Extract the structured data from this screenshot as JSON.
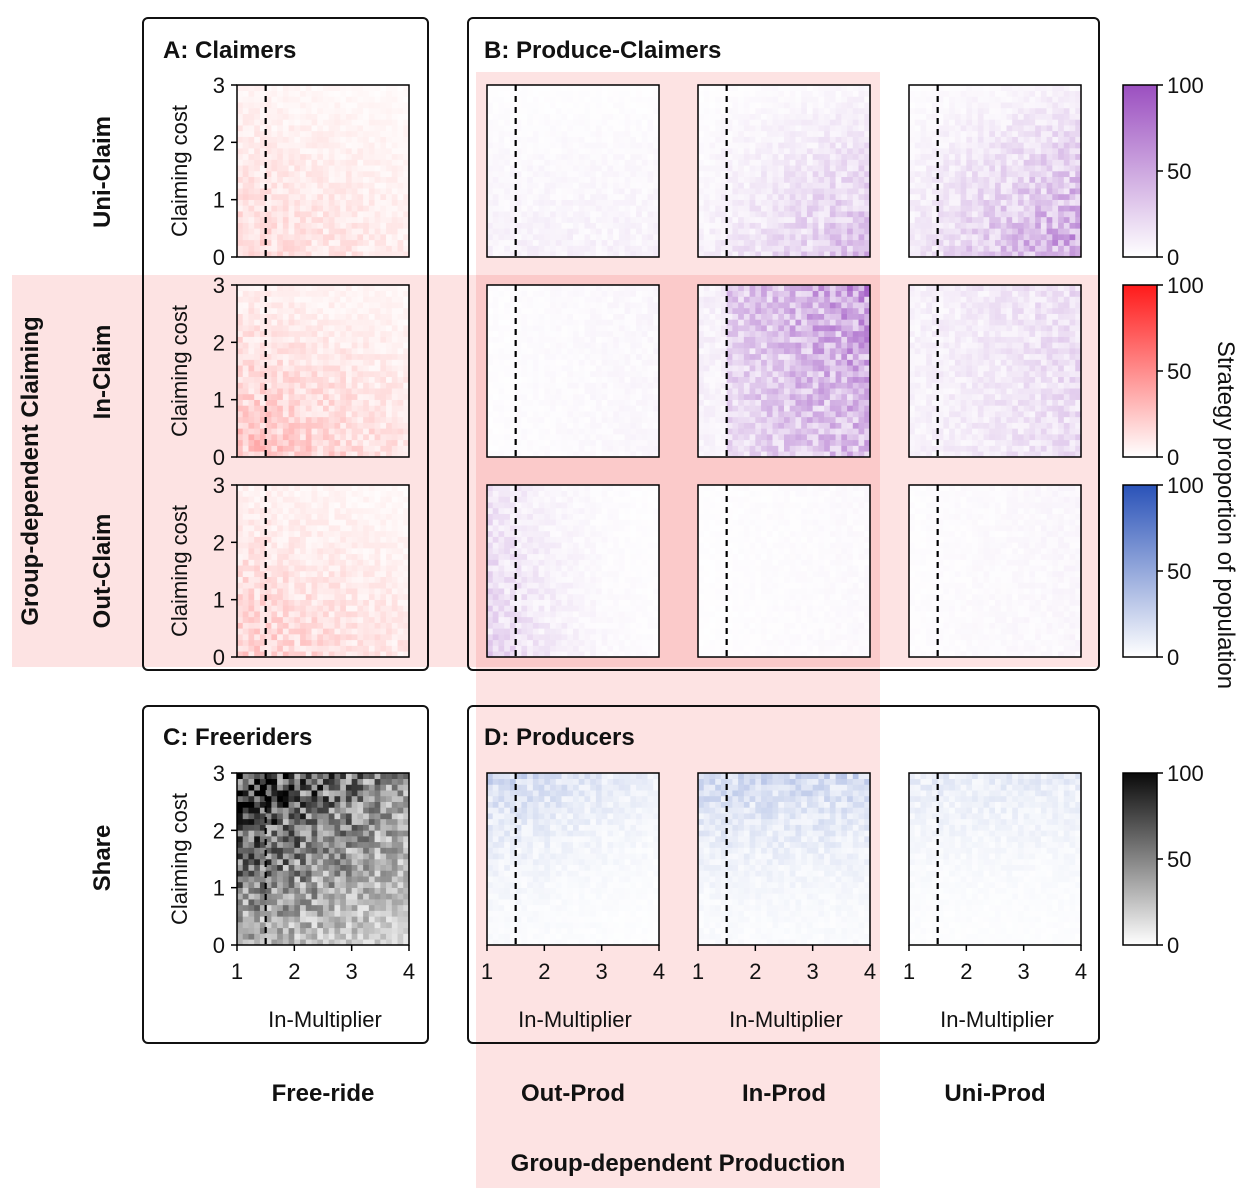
{
  "panels": {
    "a_title": "A: Claimers",
    "b_title": "B: Produce-Claimers",
    "c_title": "C: Freeriders",
    "d_title": "D: Producers"
  },
  "rows": {
    "uni": "Uni-Claim",
    "in": "In-Claim",
    "out": "Out-Claim",
    "share": "Share",
    "group": "Group-dependent Claiming"
  },
  "columns": {
    "free": "Free-ride",
    "out": "Out-Prod",
    "in": "In-Prod",
    "uni": "Uni-Prod",
    "group": "Group-dependent Production"
  },
  "axes": {
    "ylabel": "Claiming cost",
    "xlabel": "In-Multiplier",
    "yticks": [
      "0",
      "1",
      "2",
      "3"
    ],
    "xticks": [
      "1",
      "2",
      "3",
      "4"
    ]
  },
  "colorbar": {
    "label": "Strategy proportion of population",
    "ticks": [
      "0",
      "50",
      "100"
    ],
    "colors": [
      "#9b4fc0",
      "#ff1a1a",
      "#2a52b8",
      "#0a0a0a"
    ]
  },
  "highlight_color": "#fde3e3",
  "chart_data": {
    "type": "heatmap",
    "x_range": [
      1,
      4
    ],
    "y_range": [
      0,
      3
    ],
    "dashed_line_x": 1.5,
    "grid_size": [
      30,
      30
    ],
    "value_range": [
      0,
      100
    ],
    "cells": [
      {
        "row": "Uni-Claim",
        "col": "Free-ride",
        "color": "red",
        "mean_intensity": 8
      },
      {
        "row": "Uni-Claim",
        "col": "Out-Prod",
        "color": "purple",
        "mean_intensity": 5
      },
      {
        "row": "Uni-Claim",
        "col": "In-Prod",
        "color": "purple",
        "mean_intensity": 12
      },
      {
        "row": "Uni-Claim",
        "col": "Uni-Prod",
        "color": "purple",
        "mean_intensity": 18
      },
      {
        "row": "In-Claim",
        "col": "Free-ride",
        "color": "red",
        "mean_intensity": 12
      },
      {
        "row": "In-Claim",
        "col": "Out-Prod",
        "color": "purple",
        "mean_intensity": 3
      },
      {
        "row": "In-Claim",
        "col": "In-Prod",
        "color": "purple",
        "mean_intensity": 28
      },
      {
        "row": "In-Claim",
        "col": "Uni-Prod",
        "color": "purple",
        "mean_intensity": 12
      },
      {
        "row": "Out-Claim",
        "col": "Free-ride",
        "color": "red",
        "mean_intensity": 10
      },
      {
        "row": "Out-Claim",
        "col": "Out-Prod",
        "color": "purple",
        "mean_intensity": 8
      },
      {
        "row": "Out-Claim",
        "col": "In-Prod",
        "color": "purple",
        "mean_intensity": 2
      },
      {
        "row": "Out-Claim",
        "col": "Uni-Prod",
        "color": "purple",
        "mean_intensity": 3
      },
      {
        "row": "Share",
        "col": "Free-ride",
        "color": "black",
        "mean_intensity": 40
      },
      {
        "row": "Share",
        "col": "Out-Prod",
        "color": "blue",
        "mean_intensity": 10
      },
      {
        "row": "Share",
        "col": "In-Prod",
        "color": "blue",
        "mean_intensity": 12
      },
      {
        "row": "Share",
        "col": "Uni-Prod",
        "color": "blue",
        "mean_intensity": 6
      }
    ]
  }
}
